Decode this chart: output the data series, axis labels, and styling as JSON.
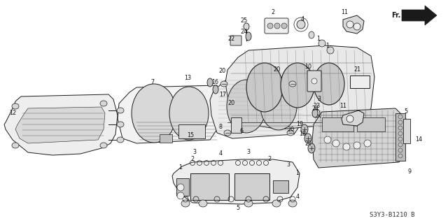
{
  "background_color": "#ffffff",
  "image_code": "S3Y3-B1210 B",
  "fig_width": 6.4,
  "fig_height": 3.19,
  "dpi": 100,
  "label_fs": 5.8,
  "dark": "#1a1a1a",
  "gray": "#666666",
  "light_gray": "#aaaaaa",
  "fill_light": "#eeeeee",
  "fill_mid": "#d8d8d8",
  "fill_dark": "#c0c0c0"
}
